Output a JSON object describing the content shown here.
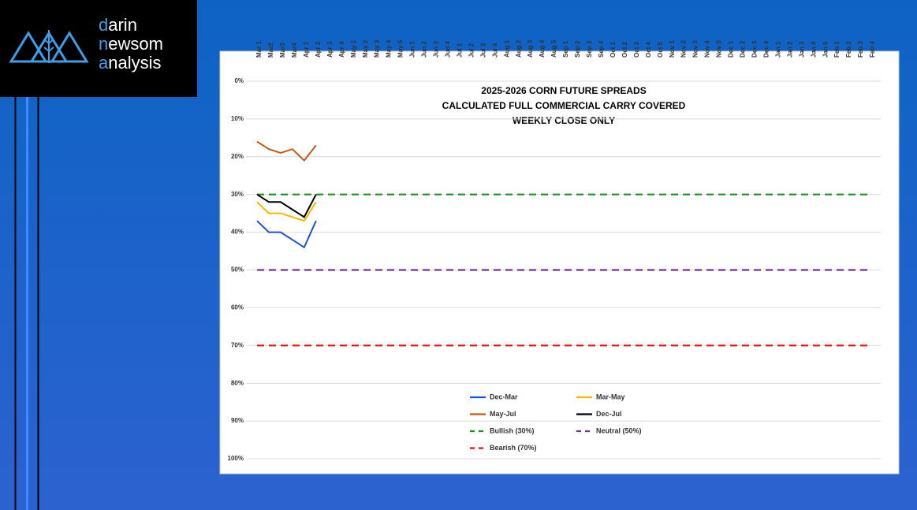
{
  "logo": [
    {
      "accent": "d",
      "rest": "arin"
    },
    {
      "accent": "n",
      "rest": "ewsom"
    },
    {
      "accent": "a",
      "rest": "nalysis"
    }
  ],
  "chart_data": {
    "type": "line",
    "title": [
      "2025-2026 CORN FUTURE SPREADS",
      "CALCULATED FULL COMMERCIAL CARRY COVERED",
      "WEEKLY CLOSE ONLY"
    ],
    "categories": [
      "Mar 1",
      "Mar2",
      "Mar3",
      "Mar4",
      "Apr 1",
      "Apr 2",
      "Apr 3",
      "Apr 4",
      "May 1",
      "May 2",
      "May 3",
      "May 4",
      "May 5",
      "Jun 1",
      "Jun 2",
      "Jun 3",
      "Jun 4",
      "Jul 1",
      "Jul 2",
      "Jul 3",
      "Jul 4",
      "Aug 1",
      "Aug 2",
      "Aug 3",
      "Aug 4",
      "Aug 5",
      "Sep 1",
      "Sep 2",
      "Sep 3",
      "Sep 4",
      "Oct 1",
      "Oct 2",
      "Oct 3",
      "Oct 4",
      "Oct 5",
      "Nov 1",
      "Nov 2",
      "Nov 3",
      "Nov 4",
      "Nov 5",
      "Dec 1",
      "Dec 2",
      "Dec 3",
      "Dec 4",
      "Jan 1",
      "Jan 2",
      "Jan 3",
      "Jan 4",
      "Jan 5",
      "Feb 1",
      "Feb 2",
      "Feb 3",
      "Feb 4"
    ],
    "ylim": [
      0,
      100
    ],
    "y_inverted": true,
    "grid": true,
    "yticks": [
      {
        "value": 0,
        "label": "0%"
      },
      {
        "value": 10,
        "label": "10%"
      },
      {
        "value": 20,
        "label": "20%"
      },
      {
        "value": 30,
        "label": "30%"
      },
      {
        "value": 40,
        "label": "40%"
      },
      {
        "value": 50,
        "label": "50%"
      },
      {
        "value": 60,
        "label": "60%"
      },
      {
        "value": 70,
        "label": "70%"
      },
      {
        "value": 80,
        "label": "80%"
      },
      {
        "value": 90,
        "label": "90%"
      },
      {
        "value": 100,
        "label": "100%"
      }
    ],
    "series": [
      {
        "name": "Dec-Mar",
        "color": "#1f4fd8",
        "dashed": false,
        "values": [
          37,
          40,
          40,
          42,
          44,
          37,
          null,
          null,
          null,
          null,
          null,
          null,
          null,
          null,
          null,
          null,
          null,
          null,
          null,
          null,
          null,
          null,
          null,
          null,
          null,
          null,
          null,
          null,
          null,
          null,
          null,
          null,
          null,
          null,
          null,
          null,
          null,
          null,
          null,
          null,
          null,
          null,
          null,
          null,
          null,
          null,
          null,
          null,
          null,
          null,
          null,
          null,
          null
        ]
      },
      {
        "name": "Mar-May",
        "color": "#f5b800",
        "dashed": false,
        "values": [
          32,
          35,
          35,
          36,
          37,
          32,
          null,
          null,
          null,
          null,
          null,
          null,
          null,
          null,
          null,
          null,
          null,
          null,
          null,
          null,
          null,
          null,
          null,
          null,
          null,
          null,
          null,
          null,
          null,
          null,
          null,
          null,
          null,
          null,
          null,
          null,
          null,
          null,
          null,
          null,
          null,
          null,
          null,
          null,
          null,
          null,
          null,
          null,
          null,
          null,
          null,
          null,
          null
        ]
      },
      {
        "name": "May-Jul",
        "color": "#c55a11",
        "dashed": false,
        "values": [
          16,
          18,
          19,
          18,
          21,
          17,
          null,
          null,
          null,
          null,
          null,
          null,
          null,
          null,
          null,
          null,
          null,
          null,
          null,
          null,
          null,
          null,
          null,
          null,
          null,
          null,
          null,
          null,
          null,
          null,
          null,
          null,
          null,
          null,
          null,
          null,
          null,
          null,
          null,
          null,
          null,
          null,
          null,
          null,
          null,
          null,
          null,
          null,
          null,
          null,
          null,
          null,
          null
        ]
      },
      {
        "name": "Dec-Jul",
        "color": "#000000",
        "dashed": false,
        "values": [
          30,
          32,
          32,
          34,
          36,
          30,
          null,
          null,
          null,
          null,
          null,
          null,
          null,
          null,
          null,
          null,
          null,
          null,
          null,
          null,
          null,
          null,
          null,
          null,
          null,
          null,
          null,
          null,
          null,
          null,
          null,
          null,
          null,
          null,
          null,
          null,
          null,
          null,
          null,
          null,
          null,
          null,
          null,
          null,
          null,
          null,
          null,
          null,
          null,
          null,
          null,
          null,
          null
        ]
      },
      {
        "name": "Bullish (30%)",
        "color": "#17901a",
        "dashed": true,
        "values": [
          30,
          30,
          30,
          30,
          30,
          30,
          30,
          30,
          30,
          30,
          30,
          30,
          30,
          30,
          30,
          30,
          30,
          30,
          30,
          30,
          30,
          30,
          30,
          30,
          30,
          30,
          30,
          30,
          30,
          30,
          30,
          30,
          30,
          30,
          30,
          30,
          30,
          30,
          30,
          30,
          30,
          30,
          30,
          30,
          30,
          30,
          30,
          30,
          30,
          30,
          30,
          30,
          30
        ]
      },
      {
        "name": "Neutral (50%)",
        "color": "#7030a0",
        "dashed": true,
        "values": [
          50,
          50,
          50,
          50,
          50,
          50,
          50,
          50,
          50,
          50,
          50,
          50,
          50,
          50,
          50,
          50,
          50,
          50,
          50,
          50,
          50,
          50,
          50,
          50,
          50,
          50,
          50,
          50,
          50,
          50,
          50,
          50,
          50,
          50,
          50,
          50,
          50,
          50,
          50,
          50,
          50,
          50,
          50,
          50,
          50,
          50,
          50,
          50,
          50,
          50,
          50,
          50,
          50
        ]
      },
      {
        "name": "Bearish (70%)",
        "color": "#e01010",
        "dashed": true,
        "values": [
          70,
          70,
          70,
          70,
          70,
          70,
          70,
          70,
          70,
          70,
          70,
          70,
          70,
          70,
          70,
          70,
          70,
          70,
          70,
          70,
          70,
          70,
          70,
          70,
          70,
          70,
          70,
          70,
          70,
          70,
          70,
          70,
          70,
          70,
          70,
          70,
          70,
          70,
          70,
          70,
          70,
          70,
          70,
          70,
          70,
          70,
          70,
          70,
          70,
          70,
          70,
          70,
          70
        ]
      }
    ]
  }
}
